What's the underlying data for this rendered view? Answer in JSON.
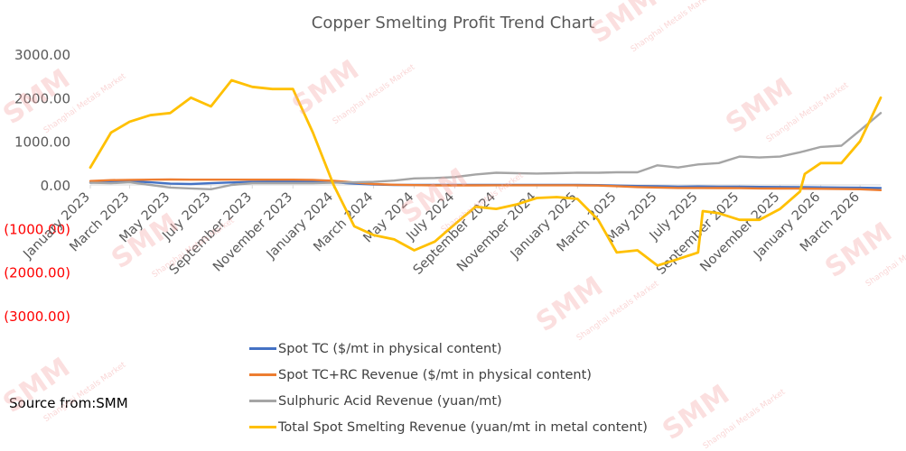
{
  "chart_data": {
    "type": "line",
    "title": "Copper Smelting Profit Trend Chart",
    "source": "Source from:SMM",
    "ylim": [
      -3000,
      3000
    ],
    "y_ticks": [
      {
        "value": 3000,
        "label": "3000.00",
        "color": "#595959"
      },
      {
        "value": 2000,
        "label": "2000.00",
        "color": "#595959"
      },
      {
        "value": 1000,
        "label": "1000.00",
        "color": "#595959"
      },
      {
        "value": 0,
        "label": "0.00",
        "color": "#595959"
      },
      {
        "value": -1000,
        "label": "(1000.00)",
        "color": "#ff0000"
      },
      {
        "value": -2000,
        "label": "(2000.00)",
        "color": "#ff0000"
      },
      {
        "value": -3000,
        "label": "(3000.00)",
        "color": "#ff0000"
      }
    ],
    "x_range": [
      "2023-01",
      "2026-04"
    ],
    "x_tick_labels": [
      {
        "date": "2023-01",
        "label": "January 2023"
      },
      {
        "date": "2023-03",
        "label": "March 2023"
      },
      {
        "date": "2023-05",
        "label": "May 2023"
      },
      {
        "date": "2023-07",
        "label": "July 2023"
      },
      {
        "date": "2023-09",
        "label": "September 2023"
      },
      {
        "date": "2023-11",
        "label": "November 2023"
      },
      {
        "date": "2024-01",
        "label": "January 2024"
      },
      {
        "date": "2024-03",
        "label": "March 2024"
      },
      {
        "date": "2024-05",
        "label": "May 2024"
      },
      {
        "date": "2024-07",
        "label": "July 2024"
      },
      {
        "date": "2024-09",
        "label": "September 2024"
      },
      {
        "date": "2024-11",
        "label": "November 2024"
      },
      {
        "date": "2025-01",
        "label": "January 2025"
      },
      {
        "date": "2025-03",
        "label": "March 2025"
      },
      {
        "date": "2025-05",
        "label": "May 2025"
      },
      {
        "date": "2025-07",
        "label": "July 2025"
      },
      {
        "date": "2025-09",
        "label": "September 2025"
      },
      {
        "date": "2025-11",
        "label": "November 2025"
      },
      {
        "date": "2026-01",
        "label": "January 2026"
      },
      {
        "date": "2026-03",
        "label": "March 2026"
      }
    ],
    "legend_position": "bottom",
    "series": [
      {
        "name": "Spot TC ($/mt in physical content)",
        "color": "#4472c4",
        "points": [
          [
            "2023-01-01",
            50
          ],
          [
            "2023-02-01",
            80
          ],
          [
            "2023-03-01",
            85
          ],
          [
            "2023-04-01",
            60
          ],
          [
            "2023-05-01",
            30
          ],
          [
            "2023-06-01",
            20
          ],
          [
            "2023-07-01",
            40
          ],
          [
            "2023-08-01",
            55
          ],
          [
            "2023-09-01",
            70
          ],
          [
            "2023-10-01",
            80
          ],
          [
            "2023-11-01",
            85
          ],
          [
            "2023-12-01",
            80
          ],
          [
            "2024-01-01",
            60
          ],
          [
            "2024-02-01",
            30
          ],
          [
            "2024-03-01",
            10
          ],
          [
            "2024-04-01",
            0
          ],
          [
            "2024-05-01",
            0
          ],
          [
            "2024-06-01",
            0
          ],
          [
            "2024-07-01",
            0
          ],
          [
            "2024-08-01",
            0
          ],
          [
            "2024-09-01",
            0
          ],
          [
            "2024-10-01",
            0
          ],
          [
            "2024-11-01",
            0
          ],
          [
            "2024-12-01",
            0
          ],
          [
            "2025-01-01",
            0
          ],
          [
            "2025-02-01",
            -5
          ],
          [
            "2025-03-01",
            -15
          ],
          [
            "2025-04-01",
            -25
          ],
          [
            "2025-05-01",
            -30
          ],
          [
            "2025-06-01",
            -40
          ],
          [
            "2025-07-01",
            -35
          ],
          [
            "2025-08-01",
            -40
          ],
          [
            "2025-09-01",
            -42
          ],
          [
            "2025-10-01",
            -45
          ],
          [
            "2025-11-01",
            -48
          ],
          [
            "2025-12-01",
            -50
          ],
          [
            "2026-01-01",
            -55
          ],
          [
            "2026-02-01",
            -60
          ],
          [
            "2026-03-01",
            -65
          ],
          [
            "2026-04-01",
            -70
          ]
        ]
      },
      {
        "name": "Spot TC+RC Revenue ($/mt in physical content)",
        "color": "#ed7d31",
        "points": [
          [
            "2023-01-01",
            90
          ],
          [
            "2023-02-01",
            110
          ],
          [
            "2023-03-01",
            115
          ],
          [
            "2023-04-01",
            120
          ],
          [
            "2023-05-01",
            125
          ],
          [
            "2023-06-01",
            120
          ],
          [
            "2023-07-01",
            120
          ],
          [
            "2023-08-01",
            120
          ],
          [
            "2023-09-01",
            120
          ],
          [
            "2023-10-01",
            120
          ],
          [
            "2023-11-01",
            120
          ],
          [
            "2023-12-01",
            115
          ],
          [
            "2024-01-01",
            95
          ],
          [
            "2024-02-01",
            55
          ],
          [
            "2024-03-01",
            20
          ],
          [
            "2024-04-01",
            5
          ],
          [
            "2024-05-01",
            -5
          ],
          [
            "2024-06-01",
            -10
          ],
          [
            "2024-07-01",
            -10
          ],
          [
            "2024-08-01",
            -10
          ],
          [
            "2024-09-01",
            -8
          ],
          [
            "2024-10-01",
            -8
          ],
          [
            "2024-11-01",
            -8
          ],
          [
            "2024-12-01",
            -8
          ],
          [
            "2025-01-01",
            -10
          ],
          [
            "2025-02-01",
            -15
          ],
          [
            "2025-03-01",
            -30
          ],
          [
            "2025-04-01",
            -50
          ],
          [
            "2025-05-01",
            -60
          ],
          [
            "2025-06-01",
            -70
          ],
          [
            "2025-07-01",
            -70
          ],
          [
            "2025-08-01",
            -72
          ],
          [
            "2025-09-01",
            -75
          ],
          [
            "2025-10-01",
            -80
          ],
          [
            "2025-11-01",
            -82
          ],
          [
            "2025-12-01",
            -85
          ],
          [
            "2026-01-01",
            -90
          ],
          [
            "2026-02-01",
            -95
          ],
          [
            "2026-03-01",
            -100
          ],
          [
            "2026-04-01",
            -120
          ]
        ]
      },
      {
        "name": "Sulphuric Acid Revenue (yuan/mt)",
        "color": "#a5a5a5",
        "points": [
          [
            "2023-01-01",
            50
          ],
          [
            "2023-02-01",
            40
          ],
          [
            "2023-03-01",
            60
          ],
          [
            "2023-04-01",
            0
          ],
          [
            "2023-05-01",
            -60
          ],
          [
            "2023-06-01",
            -80
          ],
          [
            "2023-07-01",
            -100
          ],
          [
            "2023-08-01",
            0
          ],
          [
            "2023-09-01",
            40
          ],
          [
            "2023-10-01",
            40
          ],
          [
            "2023-11-01",
            40
          ],
          [
            "2023-12-01",
            40
          ],
          [
            "2024-01-01",
            50
          ],
          [
            "2024-02-01",
            60
          ],
          [
            "2024-03-01",
            70
          ],
          [
            "2024-04-01",
            100
          ],
          [
            "2024-05-01",
            150
          ],
          [
            "2024-06-01",
            160
          ],
          [
            "2024-07-01",
            180
          ],
          [
            "2024-08-01",
            240
          ],
          [
            "2024-09-01",
            280
          ],
          [
            "2024-10-01",
            270
          ],
          [
            "2024-11-01",
            260
          ],
          [
            "2024-12-01",
            270
          ],
          [
            "2025-01-01",
            280
          ],
          [
            "2025-02-01",
            280
          ],
          [
            "2025-03-01",
            290
          ],
          [
            "2025-04-01",
            290
          ],
          [
            "2025-05-01",
            450
          ],
          [
            "2025-06-01",
            400
          ],
          [
            "2025-07-01",
            470
          ],
          [
            "2025-08-01",
            500
          ],
          [
            "2025-09-01",
            650
          ],
          [
            "2025-10-01",
            630
          ],
          [
            "2025-11-01",
            650
          ],
          [
            "2025-12-01",
            750
          ],
          [
            "2026-01-01",
            870
          ],
          [
            "2026-02-01",
            900
          ],
          [
            "2026-03-01",
            1250
          ],
          [
            "2026-04-01",
            1650
          ]
        ]
      },
      {
        "name": "Total Spot Smelting Revenue (yuan/mt in metal content)",
        "color": "#ffc000",
        "points": [
          [
            "2023-01-01",
            400
          ],
          [
            "2023-02-01",
            1200
          ],
          [
            "2023-03-01",
            1450
          ],
          [
            "2023-04-01",
            1600
          ],
          [
            "2023-05-01",
            1650
          ],
          [
            "2023-06-01",
            2000
          ],
          [
            "2023-07-01",
            1800
          ],
          [
            "2023-08-01",
            2400
          ],
          [
            "2023-09-01",
            2250
          ],
          [
            "2023-10-01",
            2200
          ],
          [
            "2023-11-01",
            2200
          ],
          [
            "2023-12-01",
            1200
          ],
          [
            "2024-01-01",
            0
          ],
          [
            "2024-02-01",
            -950
          ],
          [
            "2024-03-01",
            -1150
          ],
          [
            "2024-04-01",
            -1250
          ],
          [
            "2024-05-01",
            -1500
          ],
          [
            "2024-06-01",
            -1300
          ],
          [
            "2024-07-01",
            -900
          ],
          [
            "2024-08-01",
            -500
          ],
          [
            "2024-09-01",
            -550
          ],
          [
            "2024-10-01",
            -450
          ],
          [
            "2024-11-01",
            -300
          ],
          [
            "2024-12-01",
            -280
          ],
          [
            "2025-01-01",
            -320
          ],
          [
            "2025-02-01",
            -800
          ],
          [
            "2025-03-01",
            -1550
          ],
          [
            "2025-04-01",
            -1500
          ],
          [
            "2025-05-01",
            -1850
          ],
          [
            "2025-06-01",
            -1700
          ],
          [
            "2025-07-01",
            -1550
          ],
          [
            "2025-07-08",
            -600
          ],
          [
            "2025-08-01",
            -650
          ],
          [
            "2025-09-01",
            -800
          ],
          [
            "2025-10-01",
            -800
          ],
          [
            "2025-11-01",
            -550
          ],
          [
            "2025-12-01",
            -150
          ],
          [
            "2025-12-08",
            250
          ],
          [
            "2026-01-01",
            500
          ],
          [
            "2026-02-01",
            500
          ],
          [
            "2026-03-01",
            1000
          ],
          [
            "2026-04-01",
            2000
          ]
        ]
      }
    ]
  },
  "watermark": {
    "brand": "SMM",
    "sub": "Shanghai Metals Market"
  }
}
